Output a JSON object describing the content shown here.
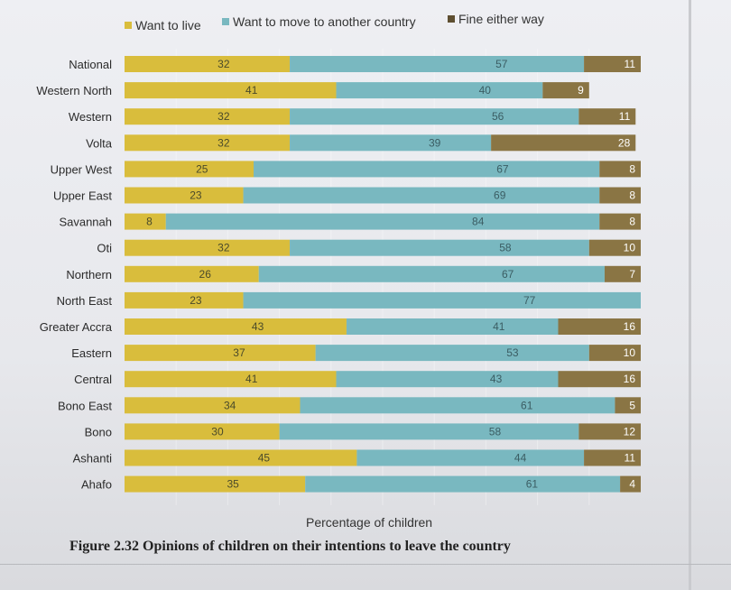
{
  "chart_data": {
    "type": "bar",
    "orientation": "horizontal",
    "stacked": true,
    "title": "Figure 2.32 Opinions of children on their intentions to leave the country",
    "xlabel": "Percentage of children",
    "xlim": [
      0,
      100
    ],
    "categories": [
      "National",
      "Western North",
      "Western",
      "Volta",
      "Upper West",
      "Upper East",
      "Savannah",
      "Oti",
      "Northern",
      "North East",
      "Greater Accra",
      "Eastern",
      "Central",
      "Bono East",
      "Bono",
      "Ashanti",
      "Ahafo"
    ],
    "series": [
      {
        "name": "Want to live",
        "color": "#d9bd3c",
        "values": [
          32,
          41,
          32,
          32,
          25,
          23,
          8,
          32,
          26,
          23,
          43,
          37,
          41,
          34,
          30,
          45,
          35
        ]
      },
      {
        "name": "Want to move to another country",
        "color": "#79b8c0",
        "values": [
          57,
          40,
          56,
          39,
          67,
          69,
          84,
          58,
          67,
          77,
          41,
          53,
          43,
          61,
          58,
          44,
          61
        ]
      },
      {
        "name": "Fine either way",
        "color": "#8a7544",
        "values": [
          11,
          9,
          11,
          28,
          8,
          8,
          8,
          10,
          7,
          null,
          16,
          10,
          16,
          5,
          12,
          11,
          4
        ]
      }
    ],
    "legend_position": "top",
    "grid": true
  },
  "legend": {
    "items": [
      "Want to live",
      "Want to move to another country",
      "Fine either way"
    ]
  },
  "caption": "Figure 2.32 Opinions of children on their intentions to leave the country",
  "axis_title": "Percentage of children"
}
